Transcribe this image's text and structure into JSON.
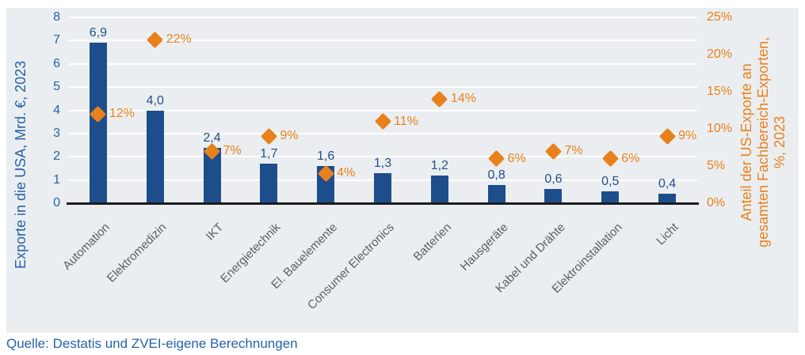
{
  "chart_data": {
    "type": "bar",
    "categories": [
      "Automation",
      "Elektromedizin",
      "IKT",
      "Energietechnik",
      "El. Bauelemente",
      "Consumer Electronics",
      "Batterien",
      "Hausgeräte",
      "Kabel und Drähte",
      "Elektroinstallation",
      "Licht"
    ],
    "series": [
      {
        "name": "Exporte in die USA, Mrd. €, 2023",
        "type": "bar",
        "values": [
          6.9,
          4.0,
          2.4,
          1.7,
          1.6,
          1.3,
          1.2,
          0.8,
          0.6,
          0.5,
          0.4
        ],
        "labels": [
          "6,9",
          "4,0",
          "2,4",
          "1,7",
          "1,6",
          "1,3",
          "1,2",
          "0,8",
          "0,6",
          "0,5",
          "0,4"
        ],
        "color": "#1E4D8C"
      },
      {
        "name": "Anteil der US-Exporte an gesamten Fachbereich-Exporten, %, 2023",
        "type": "scatter",
        "marker": "diamond",
        "values": [
          12,
          22,
          7,
          9,
          4,
          11,
          14,
          6,
          7,
          6,
          9
        ],
        "labels": [
          "12%",
          "22%",
          "7%",
          "9%",
          "4%",
          "11%",
          "14%",
          "6%",
          "7%",
          "6%",
          "9%"
        ],
        "color": "#E8811C"
      }
    ],
    "left_axis": {
      "title": "Exporte in die USA, Mrd. €, 2023",
      "ticks": [
        "0",
        "1",
        "2",
        "3",
        "4",
        "5",
        "6",
        "7",
        "8"
      ],
      "min": 0,
      "max": 8,
      "color": "#2563A8"
    },
    "right_axis": {
      "title_lines": [
        "Anteil der US-Exporte an",
        "gesamten Fachbereich-Exporten,",
        "%, 2023"
      ],
      "ticks": [
        "0%",
        "5%",
        "10%",
        "15%",
        "20%",
        "25%"
      ],
      "min": 0,
      "max": 25,
      "color": "#E8811C"
    },
    "grid": true,
    "legend": false,
    "plot_bg": "#EBEEF0"
  },
  "source_note": "Quelle: Destatis und ZVEI-eigene Berechnungen"
}
